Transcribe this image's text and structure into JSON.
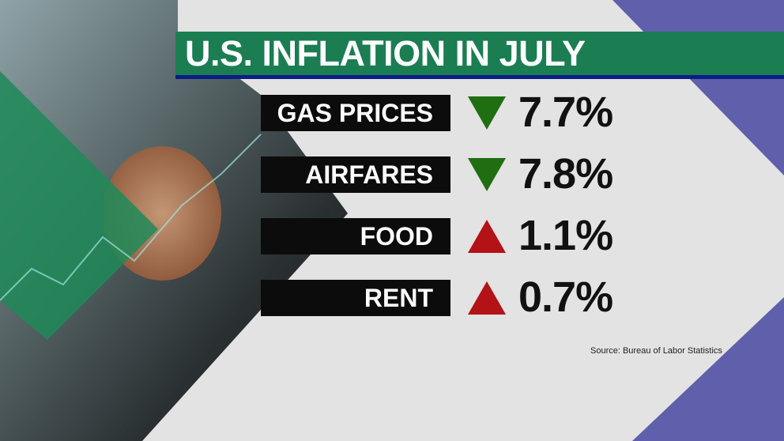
{
  "title": "U.S. INFLATION IN JULY",
  "rows": [
    {
      "label": "GAS PRICES",
      "direction": "down",
      "value": "7.7%"
    },
    {
      "label": "AIRFARES",
      "direction": "down",
      "value": "7.8%"
    },
    {
      "label": "FOOD",
      "direction": "up",
      "value": "1.1%"
    },
    {
      "label": "RENT",
      "direction": "up",
      "value": "0.7%"
    }
  ],
  "source": "Source: Bureau of Labor Statistics",
  "colors": {
    "title_bar": "#1b7d52",
    "down_arrow": "#1f6e12",
    "up_arrow": "#b31217",
    "accent_purple": "#5f5fab"
  }
}
